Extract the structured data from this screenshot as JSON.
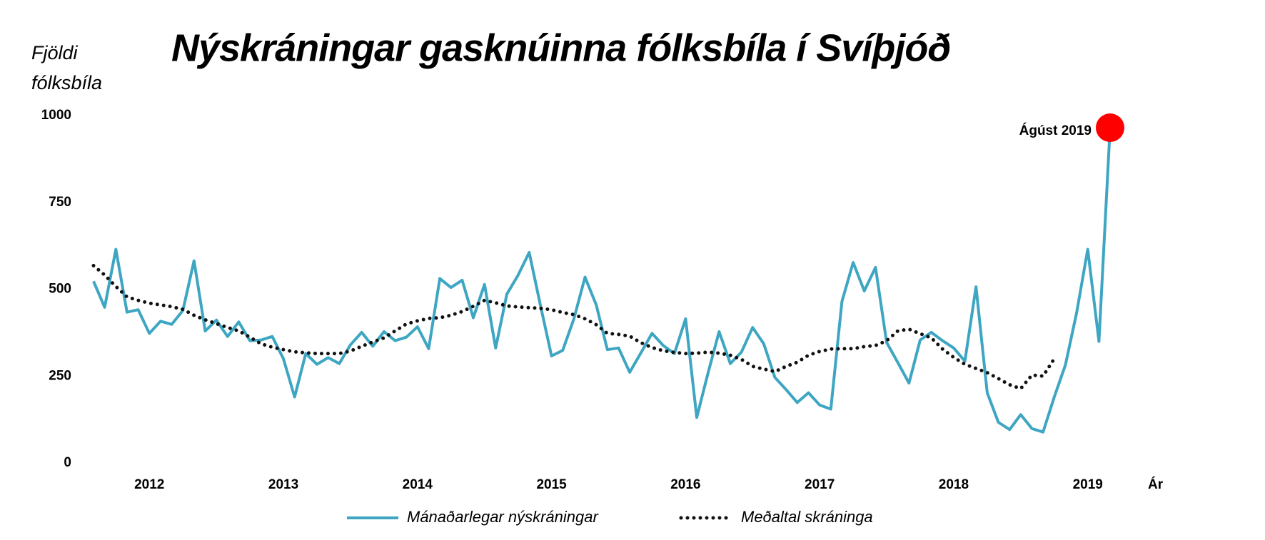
{
  "chart_data": {
    "type": "line",
    "title": "Nýskráningar gasknúinna fólksbíla í Svíþjóð",
    "ylabel": [
      "Fjöldi",
      "fólksbíla"
    ],
    "xlabel": "Ár",
    "ylim": [
      0,
      1000
    ],
    "yticks": [
      0,
      250,
      500,
      750,
      1000
    ],
    "grid": false,
    "legend": "bottom",
    "categories": [
      null,
      null,
      null,
      null,
      null,
      "2012",
      null,
      null,
      null,
      null,
      null,
      null,
      null,
      null,
      null,
      null,
      null,
      "2013",
      null,
      null,
      null,
      null,
      null,
      null,
      null,
      null,
      null,
      null,
      null,
      "2014",
      null,
      null,
      null,
      null,
      null,
      null,
      null,
      null,
      null,
      null,
      null,
      "2015",
      null,
      null,
      null,
      null,
      null,
      null,
      null,
      null,
      null,
      null,
      null,
      "2016",
      null,
      null,
      null,
      null,
      null,
      null,
      null,
      null,
      null,
      null,
      null,
      "2017",
      null,
      null,
      null,
      null,
      null,
      null,
      null,
      null,
      null,
      null,
      null,
      "2018",
      null,
      null,
      null,
      null,
      null,
      null,
      null,
      null,
      null,
      null,
      null,
      "2019",
      null,
      null
    ],
    "series": [
      {
        "name": "Mánaðarlegar nýskráningar",
        "color": "#3ea6c2",
        "style": "solid",
        "values": [
          523,
          448,
          615,
          434,
          441,
          373,
          408,
          399,
          439,
          582,
          380,
          411,
          364,
          406,
          352,
          354,
          364,
          300,
          190,
          315,
          284,
          303,
          286,
          340,
          376,
          336,
          378,
          352,
          362,
          392,
          329,
          531,
          505,
          526,
          418,
          514,
          331,
          486,
          540,
          606,
          455,
          308,
          324,
          415,
          535,
          455,
          326,
          331,
          261,
          317,
          373,
          338,
          315,
          415,
          131,
          258,
          378,
          286,
          319,
          390,
          343,
          246,
          211,
          174,
          202,
          167,
          155,
          465,
          577,
          495,
          563,
          347,
          289,
          230,
          354,
          376,
          352,
          331,
          293,
          507,
          202,
          117,
          96,
          139,
          99,
          89,
          190,
          282,
          432,
          615,
          350,
          965
        ]
      },
      {
        "name": "Meðaltal skráninga",
        "color": "#111111",
        "style": "dotted",
        "values": [
          568,
          541,
          508,
          478,
          468,
          460,
          455,
          450,
          442,
          425,
          412,
          401,
          390,
          380,
          362,
          343,
          333,
          326,
          320,
          317,
          315,
          315,
          315,
          322,
          336,
          348,
          360,
          380,
          400,
          409,
          416,
          418,
          425,
          436,
          451,
          468,
          461,
          452,
          449,
          447,
          445,
          441,
          433,
          427,
          415,
          398,
          373,
          370,
          365,
          346,
          332,
          323,
          318,
          315,
          316,
          319,
          316,
          310,
          298,
          278,
          270,
          263,
          278,
          290,
          310,
          321,
          328,
          329,
          329,
          335,
          338,
          352,
          380,
          385,
          372,
          360,
          328,
          304,
          284,
          272,
          260,
          243,
          225,
          214,
          253,
          250,
          300,
          null,
          null,
          null,
          null,
          null
        ]
      }
    ],
    "annotation": {
      "text": "Ágúst 2019",
      "series": 0,
      "index": 91,
      "color": "#ff0000"
    }
  }
}
